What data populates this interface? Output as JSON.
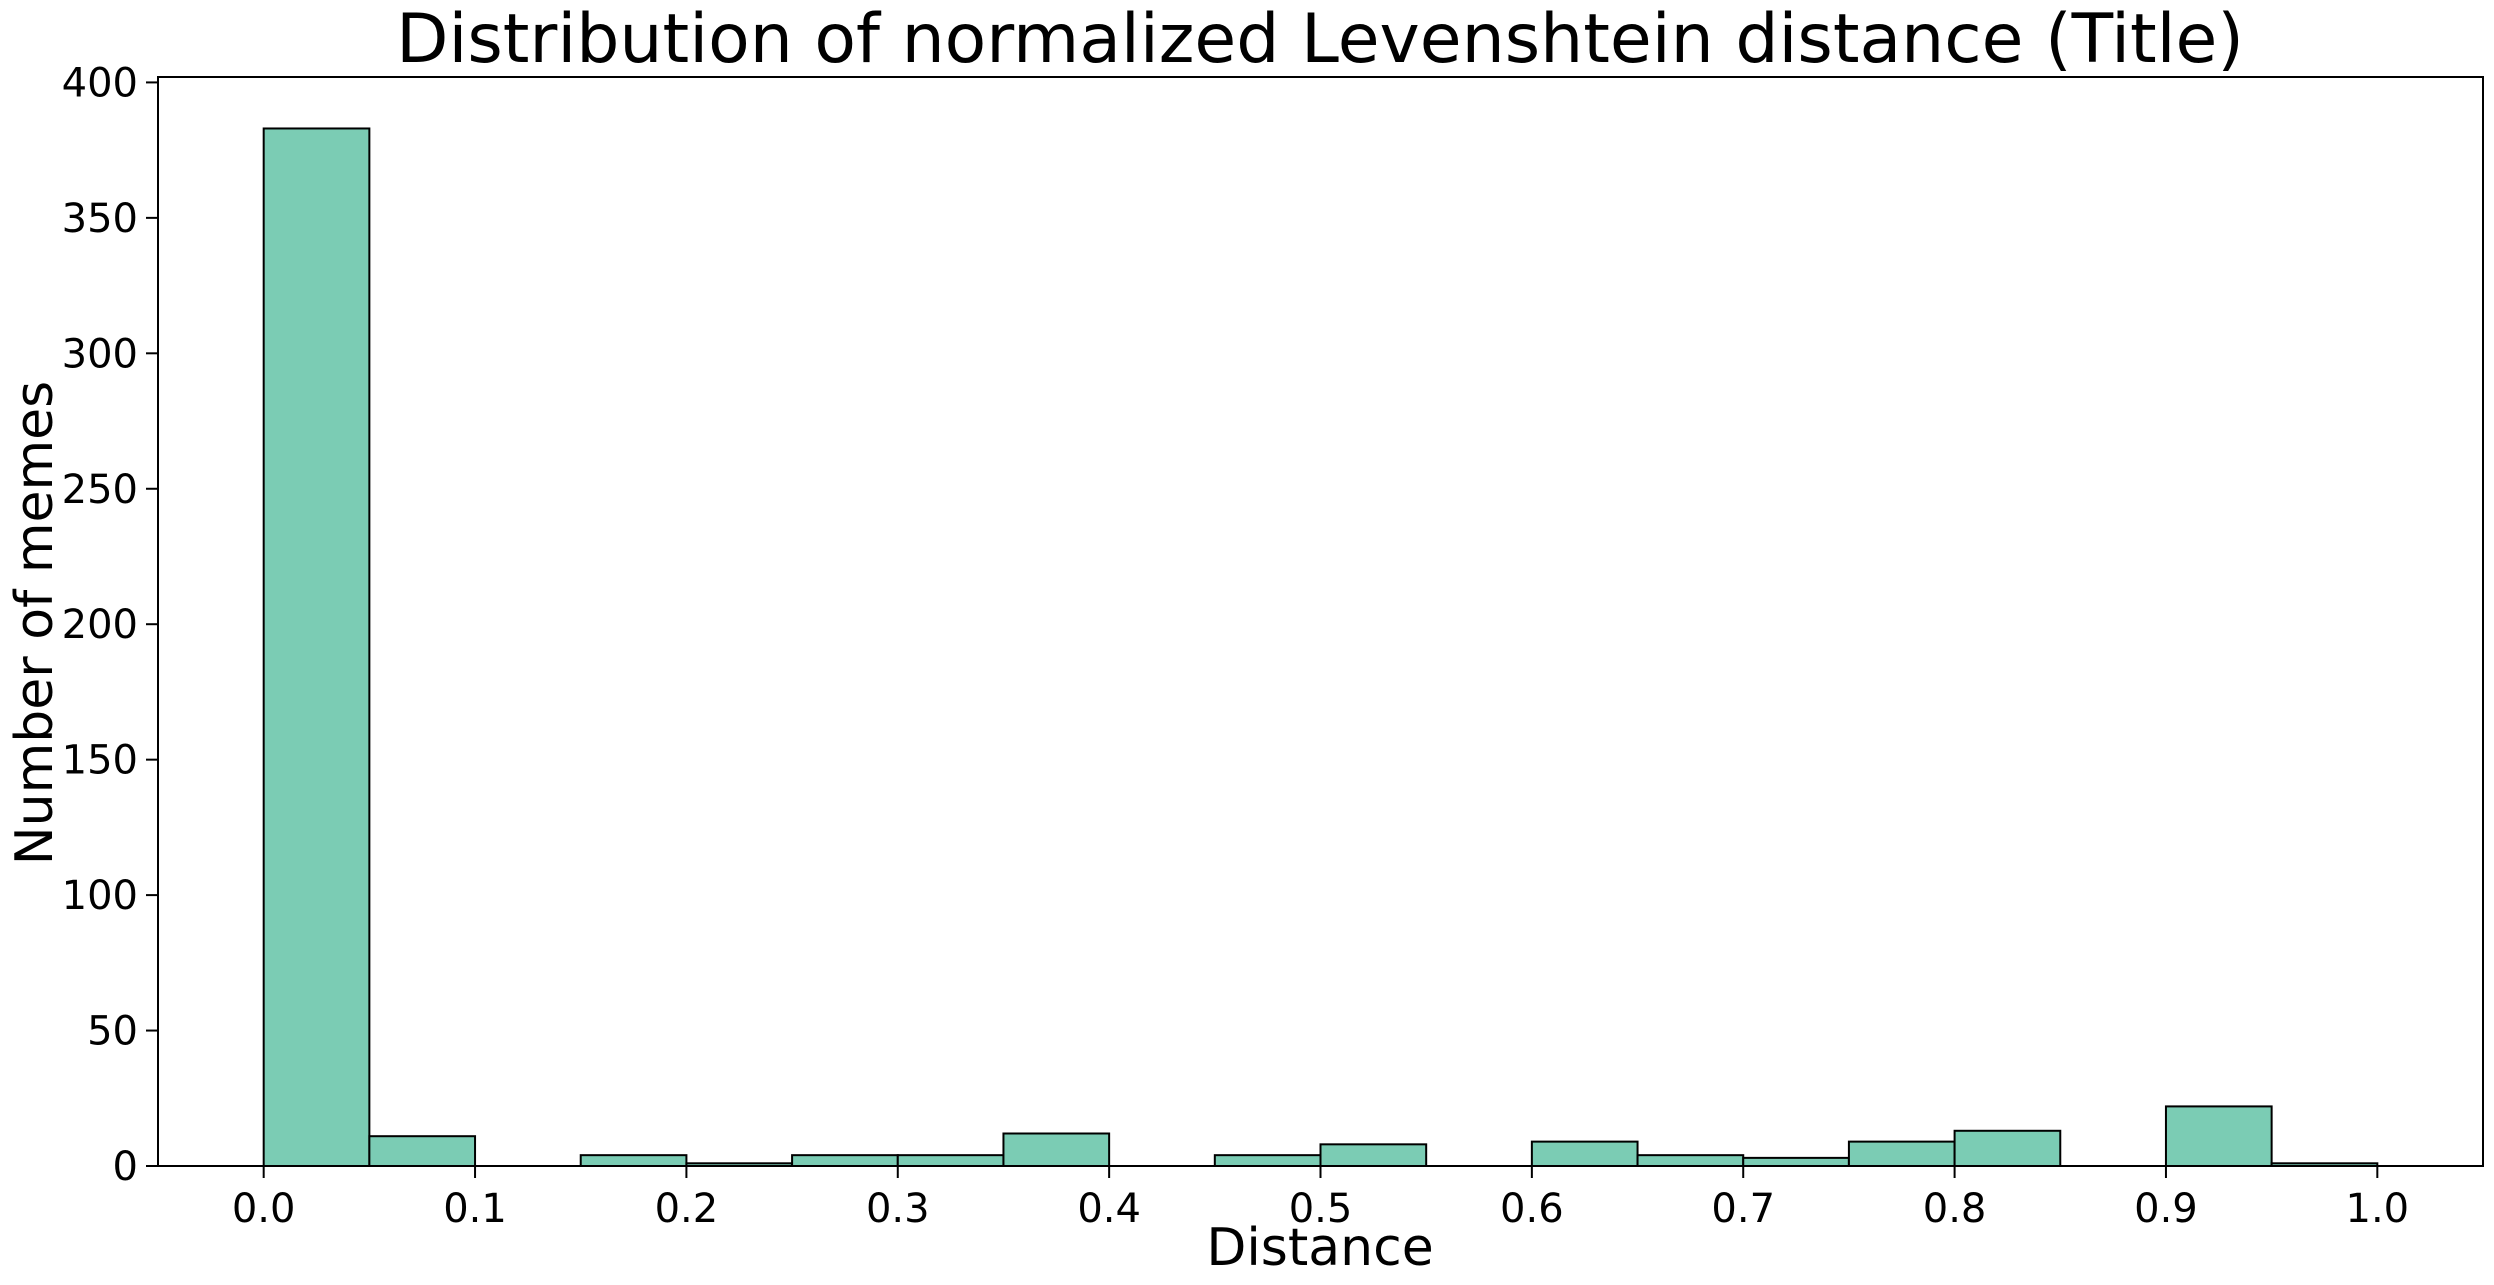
{
  "chart_data": {
    "type": "bar",
    "title": "Distribution of normalized Levenshtein distance (Title)",
    "xlabel": "Distance",
    "ylabel": "Number of memes",
    "xlim": [
      -0.05,
      1.05
    ],
    "ylim": [
      0,
      402
    ],
    "xticks": [
      "0.0",
      "0.1",
      "0.2",
      "0.3",
      "0.4",
      "0.5",
      "0.6",
      "0.7",
      "0.8",
      "0.9",
      "1.0"
    ],
    "yticks": [
      "0",
      "50",
      "100",
      "150",
      "200",
      "250",
      "300",
      "350",
      "400"
    ],
    "bin_edges": [
      0.0,
      0.05,
      0.1,
      0.15,
      0.2,
      0.25,
      0.3,
      0.35,
      0.4,
      0.45,
      0.5,
      0.55,
      0.6,
      0.65,
      0.7,
      0.75,
      0.8,
      0.85,
      0.9,
      0.95,
      1.0
    ],
    "values": [
      383,
      11,
      0,
      4,
      1,
      4,
      4,
      12,
      0,
      4,
      8,
      0,
      9,
      4,
      3,
      9,
      13,
      0,
      22,
      1
    ],
    "bar_color": "#7bccb4",
    "edge_color": "#000000",
    "grid": false,
    "legend": "none"
  }
}
